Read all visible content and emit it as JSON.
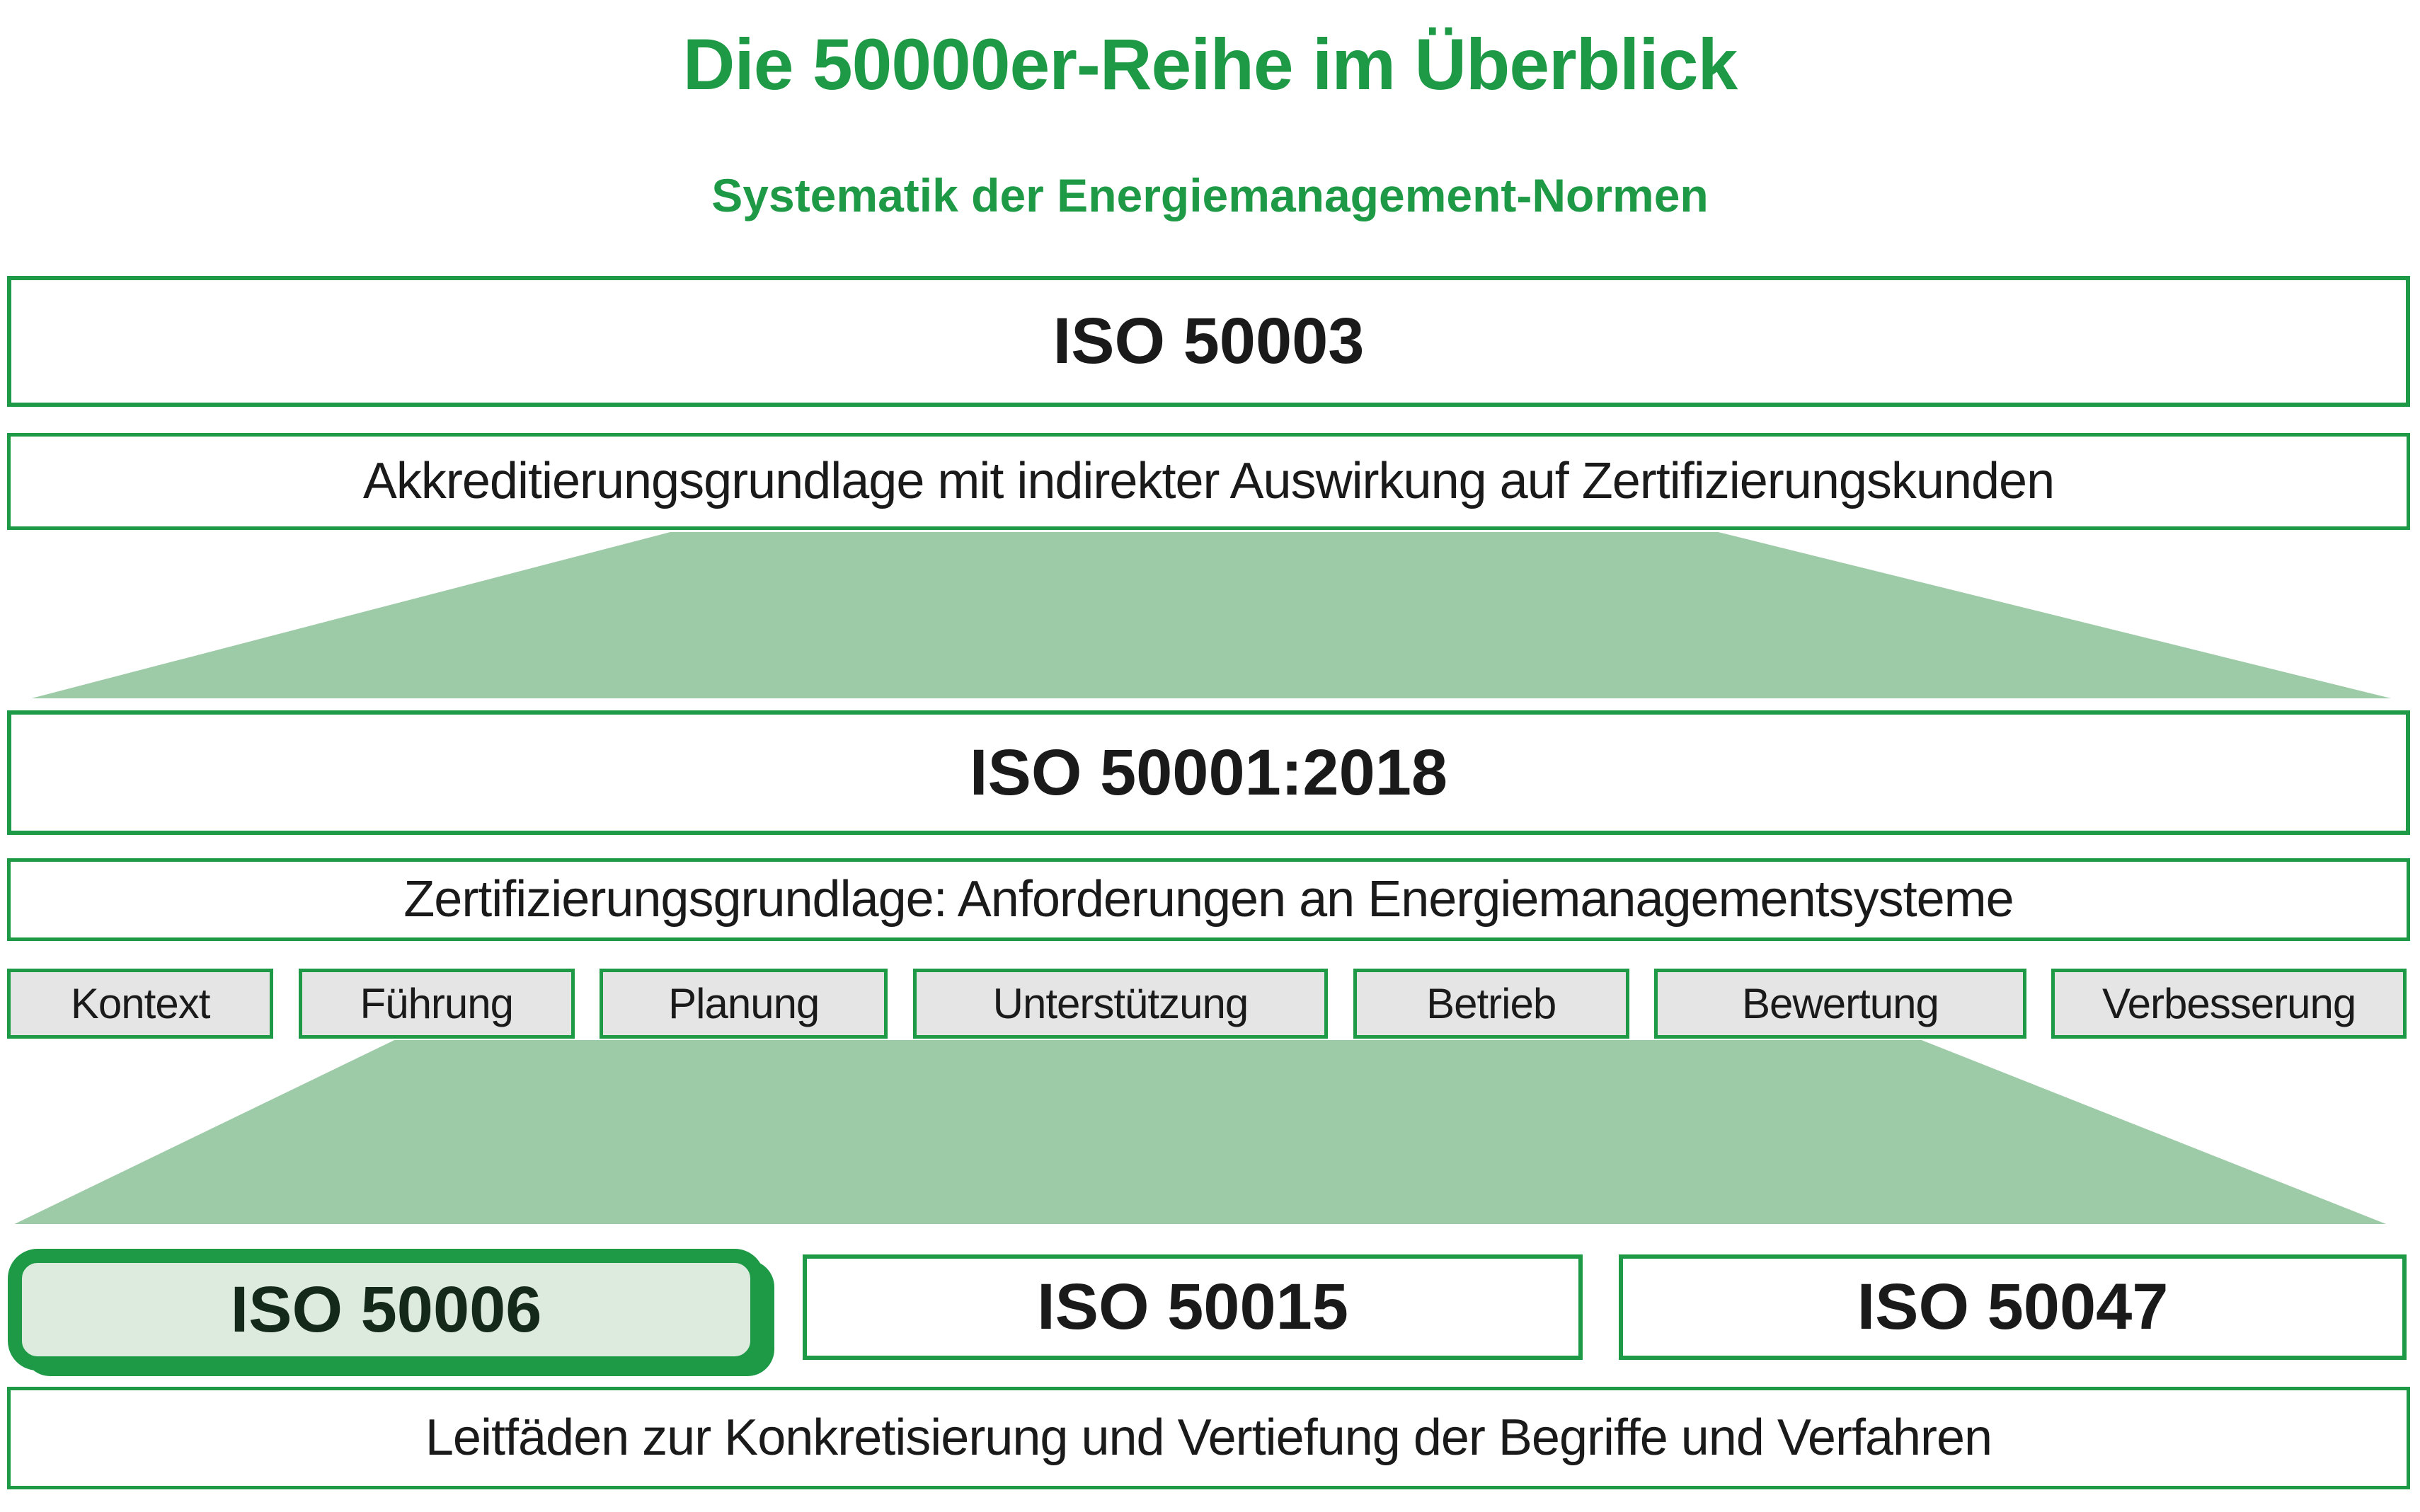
{
  "title": "Die 50000er-Reihe im Überblick",
  "subtitle": "Systematik der Energiemanagement-Normen",
  "colors": {
    "accent_green": "#1e9a47",
    "funnel_light_green": "#9dcaa7",
    "highlight_box_fill": "#dcebdd",
    "highlight_box_text": "#15291b",
    "phase_box_fill": "#e5e5e5",
    "body_text": "#1a1a1a"
  },
  "level_accreditation": {
    "heading": "ISO 50003",
    "description": "Akkreditierungsgrundlage mit indirekter Auswirkung auf Zertifizierungskunden"
  },
  "level_certification": {
    "heading": "ISO 50001:2018",
    "description": "Zertifizierungsgrundlage: Anforderungen an Energiemanagementsysteme",
    "phases": [
      "Kontext",
      "Führung",
      "Planung",
      "Unterstützung",
      "Betrieb",
      "Bewertung",
      "Verbesserung"
    ]
  },
  "level_guidelines": {
    "standards": [
      "ISO 50006",
      "ISO 50015",
      "ISO 50047"
    ],
    "highlighted_standard": "ISO 50006",
    "description": "Leitfäden zur Konkretisierung und Vertiefung der Begriffe und Verfahren"
  }
}
